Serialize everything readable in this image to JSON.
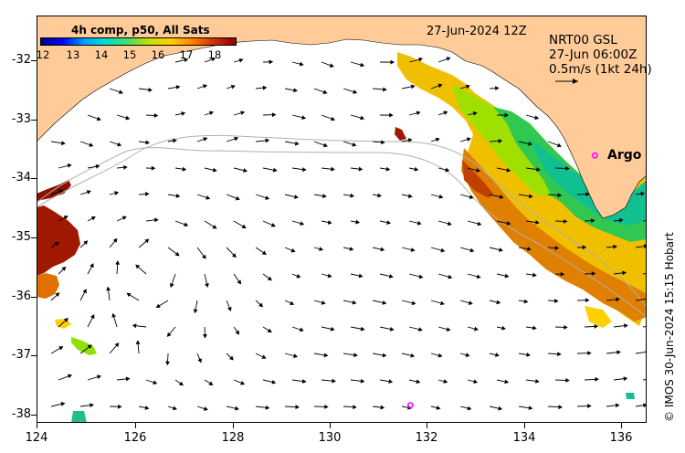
{
  "colorbar": {
    "title": "4h comp, p50, All Sats",
    "ticks": [
      "12",
      "13",
      "14",
      "15",
      "16",
      "17",
      "18"
    ],
    "colors": [
      "#00008b",
      "#0000ff",
      "#00a0ff",
      "#00e0d0",
      "#40e060",
      "#c8e000",
      "#ffd000",
      "#ff8000",
      "#d03000",
      "#8b0000"
    ]
  },
  "date_label": "27-Jun-2024 12Z",
  "product": {
    "line1": "NRT00 GSL",
    "line2": "27-Jun 06:00Z",
    "line3": "0.5m/s (1kt 24h)"
  },
  "argo_label": "Argo",
  "credit": "© IMOS 30-Jun-2024 15:15 Hobart",
  "axes": {
    "y_labels": [
      "-32",
      "-33",
      "-34",
      "-35",
      "-36",
      "-37",
      "-38"
    ],
    "x_labels": [
      "124",
      "126",
      "128",
      "130",
      "132",
      "134",
      "136"
    ],
    "lon_range": [
      124,
      136.6
    ],
    "lat_range": [
      -38.15,
      -31.25
    ]
  },
  "colors": {
    "land": "#ffcc99",
    "argo_marker": "#ff00ff",
    "bathymetry": "#b0b0b0"
  },
  "argo_floats": [
    {
      "lon": 135.53,
      "lat": -33.62
    },
    {
      "lon": 131.72,
      "lat": -37.85
    }
  ]
}
